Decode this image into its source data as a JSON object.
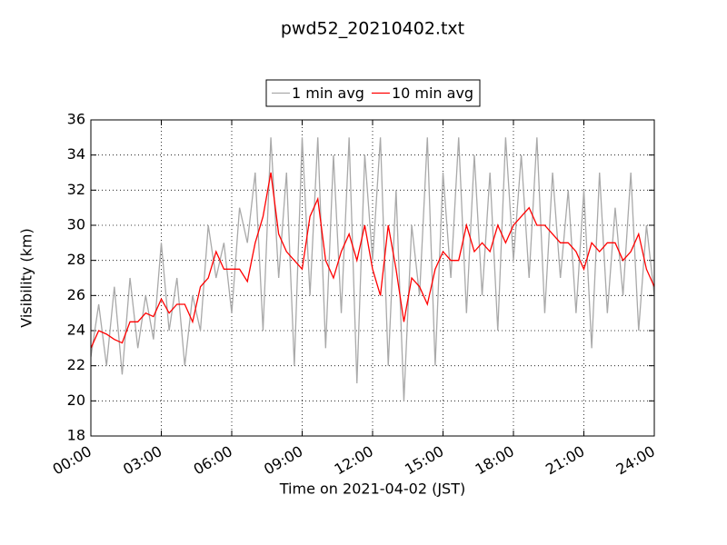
{
  "chart_data": {
    "type": "line",
    "title": "pwd52_20210402.txt",
    "xlabel": "Time on 2021-04-02 (JST)",
    "ylabel": "Visibility (km)",
    "x": [
      0,
      20,
      40,
      60,
      80,
      100,
      120,
      140,
      160,
      180,
      200,
      220,
      240,
      260,
      280,
      300,
      320,
      340,
      360,
      380,
      400,
      420,
      440,
      460,
      480,
      500,
      520,
      540,
      560,
      580,
      600,
      620,
      640,
      660,
      680,
      700,
      720,
      740,
      760,
      780,
      800,
      820,
      840,
      860,
      880,
      900,
      920,
      940,
      960,
      980,
      1000,
      1020,
      1040,
      1060,
      1080,
      1100,
      1120,
      1140,
      1160,
      1180,
      1200,
      1220,
      1240,
      1260,
      1280,
      1300,
      1320,
      1340,
      1360,
      1380,
      1400,
      1420,
      1440
    ],
    "series": [
      {
        "name": "1 min avg",
        "color": "#a9a9a9",
        "values": [
          22.5,
          25.5,
          22,
          26.5,
          21.5,
          27,
          23,
          26,
          23.5,
          29,
          24,
          27,
          22,
          26,
          24,
          30,
          27,
          29,
          25,
          31,
          29,
          33,
          24,
          35,
          27,
          33,
          22,
          35,
          26,
          35,
          23,
          34,
          25,
          35,
          21,
          34,
          28,
          35,
          22,
          32,
          20,
          30,
          26,
          35,
          22,
          33,
          27,
          35,
          25,
          34,
          26,
          33,
          24,
          35,
          28,
          34,
          27,
          35,
          25,
          33,
          27,
          32,
          25,
          32,
          23,
          33,
          25,
          31,
          26,
          33,
          24,
          30,
          26
        ]
      },
      {
        "name": "10 min avg",
        "color": "#ff0000",
        "values": [
          23,
          24,
          23.8,
          23.5,
          23.3,
          24.5,
          24.5,
          25,
          24.8,
          25.8,
          25,
          25.5,
          25.5,
          24.5,
          26.5,
          27,
          28.5,
          27.5,
          27.5,
          27.5,
          26.8,
          29,
          30.5,
          33,
          29.5,
          28.5,
          28,
          27.5,
          30.5,
          31.5,
          28,
          27,
          28.5,
          29.5,
          28,
          30,
          27.5,
          26,
          30,
          27.5,
          24.5,
          27,
          26.5,
          25.5,
          27.5,
          28.5,
          28,
          28,
          30,
          28.5,
          29,
          28.5,
          30,
          29,
          30,
          30.5,
          31,
          30,
          30,
          29.5,
          29,
          29,
          28.5,
          27.5,
          29,
          28.5,
          29,
          29,
          28,
          28.5,
          29.5,
          27.5,
          26.5
        ]
      }
    ],
    "xlim": [
      0,
      1440
    ],
    "xticks": [
      {
        "value": 0,
        "label": "00:00"
      },
      {
        "value": 180,
        "label": "03:00"
      },
      {
        "value": 360,
        "label": "06:00"
      },
      {
        "value": 540,
        "label": "09:00"
      },
      {
        "value": 720,
        "label": "12:00"
      },
      {
        "value": 900,
        "label": "15:00"
      },
      {
        "value": 1080,
        "label": "18:00"
      },
      {
        "value": 1260,
        "label": "21:00"
      },
      {
        "value": 1440,
        "label": "24:00"
      }
    ],
    "ylim": [
      18,
      36
    ],
    "yticks": [
      18,
      20,
      22,
      24,
      26,
      28,
      30,
      32,
      34,
      36
    ],
    "grid": true,
    "legend": "upper center"
  }
}
